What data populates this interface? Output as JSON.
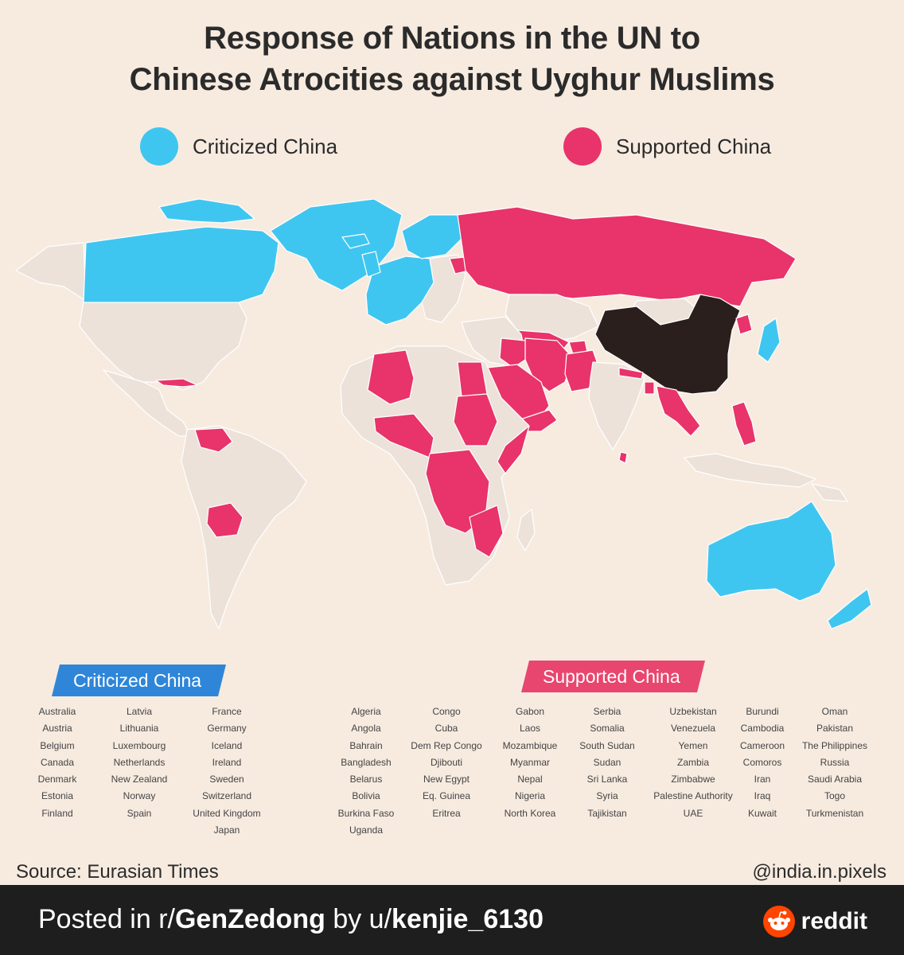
{
  "title": {
    "line1": "Response of Nations in the UN to",
    "line2": "Chinese Atrocities against Uyghur Muslims"
  },
  "colors": {
    "criticized": "#3fc6f0",
    "supported": "#e8336b",
    "china": "#2a1f1d",
    "neutral": "#ece2da",
    "background": "#f7ebe0",
    "banner_criticized": "#2f86d8",
    "banner_supported": "#e8466e"
  },
  "legend": {
    "criticized": "Criticized China",
    "supported": "Supported China"
  },
  "criticized_banner": "Criticized China",
  "supported_banner": "Supported China",
  "criticized_columns": [
    [
      "Australia",
      "Austria",
      "Belgium",
      "Canada",
      "Denmark",
      "Estonia",
      "Finland"
    ],
    [
      "Latvia",
      "Lithuania",
      "Luxembourg",
      "Netherlands",
      "New Zealand",
      "Norway",
      "Spain"
    ],
    [
      "France",
      "Germany",
      "Iceland",
      "Ireland",
      "Sweden",
      "Switzerland",
      "United Kingdom",
      "Japan"
    ]
  ],
  "supported_columns": [
    [
      "Algeria",
      "Angola",
      "Bahrain",
      "Bangladesh",
      "Belarus",
      "Bolivia",
      "Burkina Faso",
      "Uganda"
    ],
    [
      "Congo",
      "Cuba",
      "Dem Rep Congo",
      "Djibouti",
      "New Egypt",
      "Eq. Guinea",
      "Eritrea"
    ],
    [
      "Gabon",
      "Laos",
      "Mozambique",
      "Myanmar",
      "Nepal",
      "Nigeria",
      "North Korea"
    ],
    [
      "Serbia",
      "Somalia",
      "South Sudan",
      "Sudan",
      "Sri Lanka",
      "Syria",
      "Tajikistan"
    ],
    [
      "Uzbekistan",
      "Venezuela",
      "Yemen",
      "Zambia",
      "Zimbabwe",
      "Palestine Authority",
      "UAE"
    ],
    [
      "Burundi",
      "Cambodia",
      "Cameroon",
      "Comoros",
      "Iran",
      "Iraq",
      "Kuwait"
    ],
    [
      "Oman",
      "Pakistan",
      "The Philippines",
      "Russia",
      "Saudi Arabia",
      "Togo",
      "Turkmenistan"
    ]
  ],
  "source": "Source: Eurasian Times",
  "handle": "@india.in.pixels",
  "footer": {
    "prefix": "Posted in r/",
    "subreddit": "GenZedong",
    "middle": " by u/",
    "user": "kenjie_6130",
    "brand": "reddit"
  },
  "icons": {
    "brand_icon": "reddit-alien-icon"
  }
}
